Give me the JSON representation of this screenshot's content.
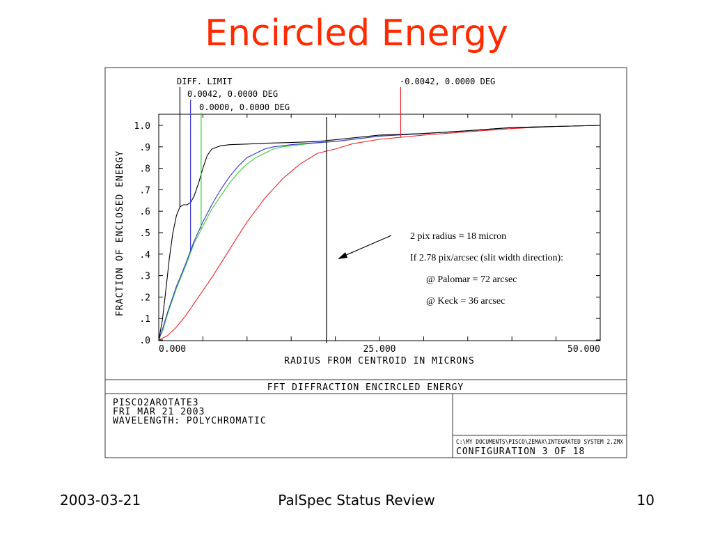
{
  "slide": {
    "title": "Encircled Energy",
    "footer_date": "2003-03-21",
    "footer_center": "PalSpec Status Review",
    "footer_page": "10"
  },
  "annotation": {
    "lines": [
      "2 pix radius = 18 micron",
      "If 2.78 pix/arcsec (slit width direction):",
      "@ Palomar = 72 arcsec",
      "@ Keck = 36 arcsec"
    ]
  },
  "plot_footer": {
    "heading": "FFT DIFFRACTION ENCIRCLED ENERGY",
    "info_lines": [
      "PISCO2AROTATE3",
      "FRI MAR 21 2003",
      "WAVELENGTH: POLYCHROMATIC"
    ],
    "file_path": "C:\\MY DOCUMENTS\\PISCO\\ZEMAX\\INTEGRATED SYSTEM 2.ZMX",
    "configuration": "CONFIGURATION 3 OF 18"
  },
  "colors": {
    "title": "#ff2a00",
    "diff_limit": "#000000",
    "series_blue": "#3333cc",
    "series_green": "#33cc33",
    "series_red": "#ee2222"
  },
  "chart_data": {
    "type": "line",
    "xlabel": "RADIUS FROM CENTROID IN MICRONS",
    "ylabel": "FRACTION OF ENCLOSED ENERGY",
    "xlim": [
      0,
      50
    ],
    "ylim": [
      0,
      1
    ],
    "x_tick_labels": [
      "0.000",
      "25.000",
      "50.000"
    ],
    "y_tick_labels": [
      ".0",
      ".1",
      ".2",
      ".3",
      ".4",
      ".5",
      ".6",
      ".7",
      ".8",
      ".9",
      "1.0"
    ],
    "grid": false,
    "series": [
      {
        "name": "DIFF. LIMIT",
        "color": "#000000",
        "marker_x": 2.4,
        "x": [
          0,
          0.4,
          0.8,
          1.2,
          1.6,
          2.0,
          2.4,
          2.8,
          3.2,
          3.6,
          4.0,
          4.5,
          5.0,
          5.5,
          6.0,
          7.0,
          8.0,
          10.0,
          12.0,
          15.0,
          18.0,
          20.0,
          25.0,
          30.0,
          35.0,
          40.0,
          45.0,
          50.0
        ],
        "y": [
          0.0,
          0.09,
          0.23,
          0.38,
          0.5,
          0.58,
          0.62,
          0.63,
          0.63,
          0.64,
          0.67,
          0.73,
          0.8,
          0.86,
          0.89,
          0.905,
          0.91,
          0.913,
          0.917,
          0.92,
          0.925,
          0.933,
          0.955,
          0.962,
          0.975,
          0.99,
          0.995,
          1.0
        ]
      },
      {
        "name": "0.0042, 0.0000 DEG",
        "color": "#3333cc",
        "marker_x": 3.6,
        "x": [
          0,
          0.5,
          1.0,
          2.0,
          3.0,
          4.0,
          5.0,
          6.0,
          7.0,
          8.0,
          9.0,
          10.0,
          11.0,
          12.0,
          13.0,
          15.0,
          17.0,
          20.0,
          25.0,
          30.0,
          35.0,
          40.0,
          45.0,
          50.0
        ],
        "y": [
          0.0,
          0.06,
          0.13,
          0.25,
          0.35,
          0.46,
          0.55,
          0.63,
          0.7,
          0.76,
          0.81,
          0.85,
          0.87,
          0.89,
          0.9,
          0.91,
          0.917,
          0.925,
          0.95,
          0.962,
          0.975,
          0.99,
          0.995,
          1.0
        ]
      },
      {
        "name": "0.0000, 0.0000 DEG",
        "color": "#33cc33",
        "marker_x": 4.8,
        "x": [
          0,
          0.5,
          1.0,
          2.0,
          3.0,
          4.0,
          5.0,
          6.0,
          7.0,
          8.0,
          9.0,
          10.0,
          11.0,
          12.0,
          13.0,
          14.0,
          15.0,
          17.0,
          20.0,
          25.0,
          30.0,
          35.0,
          40.0,
          45.0,
          50.0
        ],
        "y": [
          0.0,
          0.05,
          0.12,
          0.24,
          0.34,
          0.45,
          0.53,
          0.61,
          0.67,
          0.73,
          0.78,
          0.82,
          0.85,
          0.87,
          0.89,
          0.9,
          0.905,
          0.915,
          0.925,
          0.95,
          0.962,
          0.975,
          0.99,
          0.995,
          1.0
        ]
      },
      {
        "name": "-0.0042, 0.0000 DEG",
        "color": "#ee2222",
        "marker_x": 27.4,
        "x": [
          0,
          1.0,
          2.0,
          3.0,
          4.0,
          6.0,
          8.0,
          10.0,
          12.0,
          14.0,
          16.0,
          18.0,
          20.0,
          22.0,
          25.0,
          30.0,
          35.0,
          40.0,
          45.0,
          50.0
        ],
        "y": [
          0.0,
          0.02,
          0.06,
          0.11,
          0.17,
          0.29,
          0.42,
          0.55,
          0.66,
          0.75,
          0.82,
          0.87,
          0.89,
          0.915,
          0.935,
          0.955,
          0.97,
          0.985,
          0.995,
          1.0
        ]
      }
    ],
    "vertical_marker_x": 19.0
  }
}
